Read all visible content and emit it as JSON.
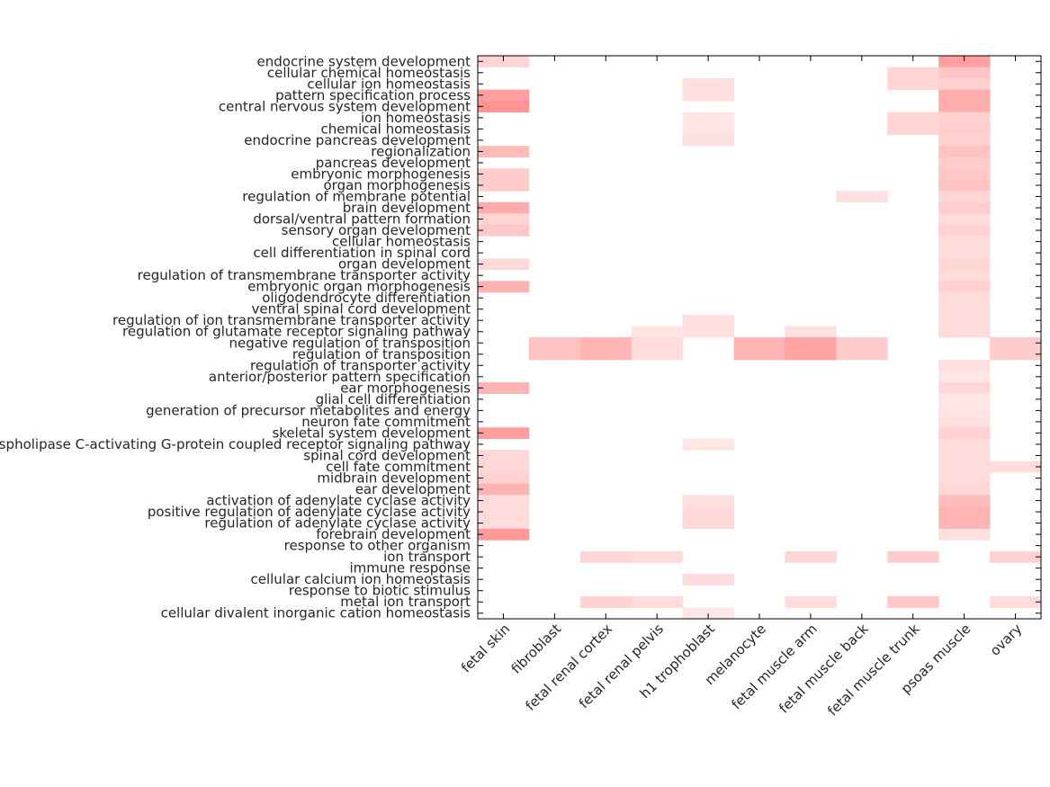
{
  "chart_data": {
    "type": "heatmap",
    "title": "",
    "xlabel": "",
    "ylabel": "",
    "value_range": [
      0,
      1
    ],
    "color_scale": [
      "#ffffff",
      "#ff0000"
    ],
    "columns": [
      "fetal skin",
      "fibroblast",
      "fetal renal cortex",
      "fetal renal pelvis",
      "h1 trophoblast",
      "melanocyte",
      "fetal muscle arm",
      "fetal muscle back",
      "fetal muscle trunk",
      "psoas muscle",
      "ovary"
    ],
    "rows": [
      "endocrine system development",
      "cellular chemical homeostasis",
      "cellular ion homeostasis",
      "pattern specification process",
      "central nervous system development",
      "ion homeostasis",
      "chemical homeostasis",
      "endocrine pancreas development",
      "regionalization",
      "pancreas development",
      "embryonic morphogenesis",
      "organ morphogenesis",
      "regulation of membrane potential",
      "brain development",
      "dorsal/ventral pattern formation",
      "sensory organ development",
      "cellular homeostasis",
      "cell differentiation in spinal cord",
      "organ development",
      "regulation of transmembrane transporter activity",
      "embryonic organ morphogenesis",
      "oligodendrocyte differentiation",
      "ventral spinal cord development",
      "regulation of ion transmembrane transporter activity",
      "regulation of glutamate receptor signaling pathway",
      "negative regulation of transposition",
      "regulation of transposition",
      "regulation of transporter activity",
      "anterior/posterior pattern specification",
      "ear morphogenesis",
      "glial cell differentiation",
      "generation of precursor metabolites and energy",
      "neuron fate commitment",
      "skeletal system development",
      "phospholipase C-activating G-protein coupled receptor signaling pathway",
      "spinal cord development",
      "cell fate commitment",
      "midbrain development",
      "ear development",
      "activation of adenylate cyclase activity",
      "positive regulation of adenylate cyclase activity",
      "regulation of adenylate cyclase activity",
      "forebrain development",
      "response to other organism",
      "ion transport",
      "immune response",
      "cellular calcium ion homeostasis",
      "response to biotic stimulus",
      "metal ion transport",
      "cellular divalent inorganic cation homeostasis"
    ],
    "values": [
      [
        0.17,
        0,
        0,
        0,
        0,
        0,
        0,
        0,
        0,
        0.38,
        0
      ],
      [
        0,
        0,
        0,
        0,
        0,
        0,
        0,
        0,
        0.16,
        0.23,
        0
      ],
      [
        0,
        0,
        0,
        0,
        0.13,
        0,
        0,
        0,
        0.16,
        0.18,
        0
      ],
      [
        0.38,
        0,
        0,
        0,
        0.13,
        0,
        0,
        0,
        0,
        0.32,
        0
      ],
      [
        0.42,
        0,
        0,
        0,
        0,
        0,
        0,
        0,
        0,
        0.32,
        0
      ],
      [
        0,
        0,
        0,
        0,
        0.1,
        0,
        0,
        0,
        0.16,
        0.18,
        0
      ],
      [
        0,
        0,
        0,
        0,
        0.1,
        0,
        0,
        0,
        0.16,
        0.2,
        0
      ],
      [
        0,
        0,
        0,
        0,
        0.12,
        0,
        0,
        0,
        0,
        0.18,
        0
      ],
      [
        0.27,
        0,
        0,
        0,
        0,
        0,
        0,
        0,
        0,
        0.24,
        0
      ],
      [
        0,
        0,
        0,
        0,
        0,
        0,
        0,
        0,
        0,
        0.2,
        0
      ],
      [
        0.2,
        0,
        0,
        0,
        0,
        0,
        0,
        0,
        0,
        0.22,
        0
      ],
      [
        0.2,
        0,
        0,
        0,
        0,
        0,
        0,
        0,
        0,
        0.24,
        0
      ],
      [
        0,
        0,
        0,
        0,
        0,
        0,
        0,
        0.12,
        0,
        0.16,
        0
      ],
      [
        0.33,
        0,
        0,
        0,
        0,
        0,
        0,
        0,
        0,
        0.2,
        0
      ],
      [
        0.17,
        0,
        0,
        0,
        0,
        0,
        0,
        0,
        0,
        0.14,
        0
      ],
      [
        0.22,
        0,
        0,
        0,
        0,
        0,
        0,
        0,
        0,
        0.18,
        0
      ],
      [
        0,
        0,
        0,
        0,
        0,
        0,
        0,
        0,
        0,
        0.14,
        0
      ],
      [
        0,
        0,
        0,
        0,
        0,
        0,
        0,
        0,
        0,
        0.14,
        0
      ],
      [
        0.15,
        0,
        0,
        0,
        0,
        0,
        0,
        0,
        0,
        0.16,
        0
      ],
      [
        0,
        0,
        0,
        0,
        0,
        0,
        0,
        0,
        0,
        0.14,
        0
      ],
      [
        0.3,
        0,
        0,
        0,
        0,
        0,
        0,
        0,
        0,
        0.18,
        0
      ],
      [
        0,
        0,
        0,
        0,
        0,
        0,
        0,
        0,
        0,
        0.14,
        0
      ],
      [
        0,
        0,
        0,
        0,
        0,
        0,
        0,
        0,
        0,
        0.14,
        0
      ],
      [
        0,
        0,
        0,
        0,
        0.12,
        0,
        0,
        0,
        0,
        0.14,
        0
      ],
      [
        0,
        0,
        0,
        0.1,
        0.12,
        0,
        0.12,
        0,
        0,
        0.14,
        0
      ],
      [
        0,
        0.24,
        0.3,
        0.14,
        0,
        0.3,
        0.36,
        0.2,
        0,
        0,
        0.2
      ],
      [
        0,
        0.24,
        0.3,
        0.14,
        0,
        0.3,
        0.36,
        0.2,
        0,
        0,
        0.2
      ],
      [
        0,
        0,
        0,
        0,
        0,
        0,
        0,
        0,
        0,
        0.12,
        0
      ],
      [
        0,
        0,
        0,
        0,
        0,
        0,
        0,
        0,
        0,
        0.1,
        0
      ],
      [
        0.3,
        0,
        0,
        0,
        0,
        0,
        0,
        0,
        0,
        0.16,
        0
      ],
      [
        0,
        0,
        0,
        0,
        0,
        0,
        0,
        0,
        0,
        0.1,
        0
      ],
      [
        0,
        0,
        0,
        0,
        0,
        0,
        0,
        0,
        0,
        0.1,
        0
      ],
      [
        0,
        0,
        0,
        0,
        0,
        0,
        0,
        0,
        0,
        0.12,
        0
      ],
      [
        0.38,
        0,
        0,
        0,
        0,
        0,
        0,
        0,
        0,
        0.18,
        0
      ],
      [
        0,
        0,
        0,
        0,
        0.1,
        0,
        0,
        0,
        0,
        0.14,
        0
      ],
      [
        0.15,
        0,
        0,
        0,
        0,
        0,
        0,
        0,
        0,
        0.14,
        0
      ],
      [
        0.15,
        0,
        0,
        0,
        0,
        0,
        0,
        0,
        0,
        0.14,
        0.14
      ],
      [
        0.18,
        0,
        0,
        0,
        0,
        0,
        0,
        0,
        0,
        0.14,
        0
      ],
      [
        0.3,
        0,
        0,
        0,
        0,
        0,
        0,
        0,
        0,
        0.16,
        0
      ],
      [
        0.14,
        0,
        0,
        0,
        0.12,
        0,
        0,
        0,
        0,
        0.26,
        0
      ],
      [
        0.14,
        0,
        0,
        0,
        0.15,
        0,
        0,
        0,
        0,
        0.3,
        0
      ],
      [
        0.14,
        0,
        0,
        0,
        0.15,
        0,
        0,
        0,
        0,
        0.3,
        0
      ],
      [
        0.4,
        0,
        0,
        0,
        0,
        0,
        0,
        0,
        0,
        0.12,
        0
      ],
      [
        0,
        0,
        0,
        0,
        0,
        0,
        0,
        0,
        0,
        0,
        0
      ],
      [
        0,
        0,
        0.16,
        0.14,
        0,
        0,
        0.16,
        0,
        0.2,
        0,
        0.18
      ],
      [
        0,
        0,
        0,
        0,
        0,
        0,
        0,
        0,
        0,
        0,
        0
      ],
      [
        0,
        0,
        0,
        0,
        0.14,
        0,
        0,
        0,
        0,
        0,
        0
      ],
      [
        0,
        0,
        0,
        0,
        0,
        0,
        0,
        0,
        0,
        0,
        0
      ],
      [
        0,
        0,
        0.18,
        0.14,
        0,
        0,
        0.14,
        0,
        0.22,
        0,
        0.14
      ],
      [
        0,
        0,
        0,
        0,
        0.1,
        0,
        0,
        0,
        0,
        0,
        0
      ]
    ]
  }
}
